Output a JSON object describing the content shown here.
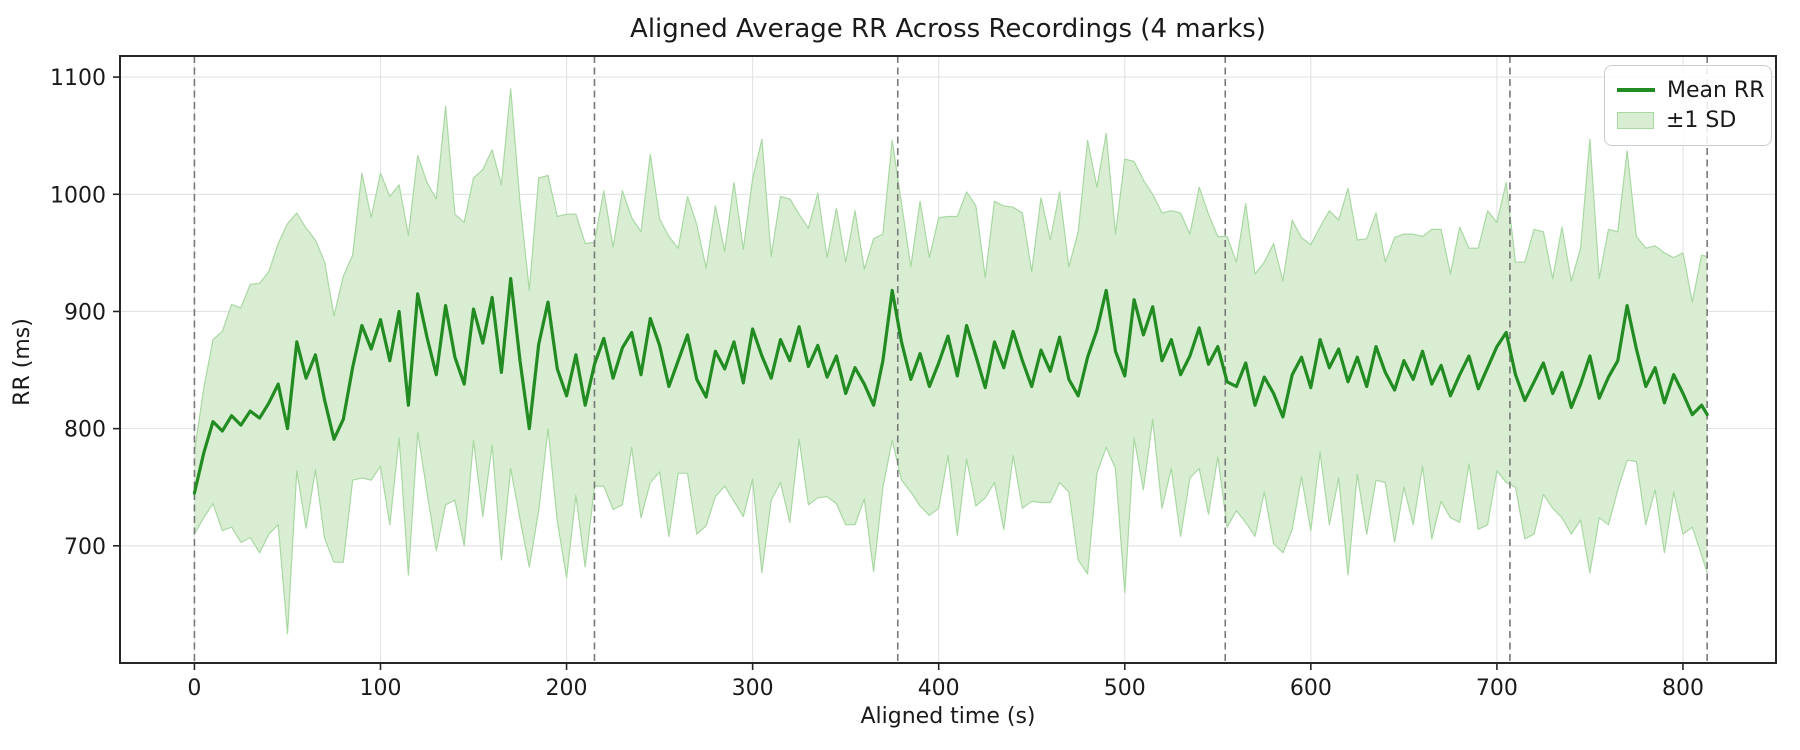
{
  "chart_data": {
    "type": "line",
    "title": "Aligned Average RR Across Recordings (4 marks)",
    "xlabel": "Aligned time (s)",
    "ylabel": "RR (ms)",
    "legend": [
      "Mean RR",
      "±1 SD"
    ],
    "legend_position": "upper right",
    "grid": true,
    "xlim": [
      -40,
      850
    ],
    "ylim": [
      600,
      1118
    ],
    "xticks": [
      0,
      100,
      200,
      300,
      400,
      500,
      600,
      700,
      800
    ],
    "yticks": [
      700,
      800,
      900,
      1000,
      1100
    ],
    "mark_lines_x": [
      0,
      215,
      378,
      554,
      707,
      813
    ],
    "style": {
      "line_color": "#228b22",
      "band_fill": "#d8edd2",
      "band_edge": "#a9d8a3",
      "mark_line_color": "#787878",
      "grid_color": "#e3e3e3",
      "spine_color": "#262626",
      "text_color": "#1a1a1a"
    },
    "x": [
      0,
      5,
      10,
      15,
      20,
      25,
      30,
      35,
      40,
      45,
      50,
      55,
      60,
      65,
      70,
      75,
      80,
      85,
      90,
      95,
      100,
      105,
      110,
      115,
      120,
      125,
      130,
      135,
      140,
      145,
      150,
      155,
      160,
      165,
      170,
      175,
      180,
      185,
      190,
      195,
      200,
      205,
      210,
      215,
      220,
      225,
      230,
      235,
      240,
      245,
      250,
      255,
      260,
      265,
      270,
      275,
      280,
      285,
      290,
      295,
      300,
      305,
      310,
      315,
      320,
      325,
      330,
      335,
      340,
      345,
      350,
      355,
      360,
      365,
      370,
      375,
      380,
      385,
      390,
      395,
      400,
      405,
      410,
      415,
      420,
      425,
      430,
      435,
      440,
      445,
      450,
      455,
      460,
      465,
      470,
      475,
      480,
      485,
      490,
      495,
      500,
      505,
      510,
      515,
      520,
      525,
      530,
      535,
      540,
      545,
      550,
      555,
      560,
      565,
      570,
      575,
      580,
      585,
      590,
      595,
      600,
      605,
      610,
      615,
      620,
      625,
      630,
      635,
      640,
      645,
      650,
      655,
      660,
      665,
      670,
      675,
      680,
      685,
      690,
      695,
      700,
      705,
      710,
      715,
      720,
      725,
      730,
      735,
      740,
      745,
      750,
      755,
      760,
      765,
      770,
      775,
      780,
      785,
      790,
      795,
      800,
      805,
      810,
      813
    ],
    "series": [
      {
        "name": "Mean RR",
        "values": [
          745,
          779,
          806,
          798,
          811,
          803,
          815,
          809,
          822,
          838,
          800,
          874,
          843,
          863,
          824,
          791,
          808,
          852,
          888,
          868,
          893,
          858,
          900,
          820,
          915,
          878,
          846,
          905,
          861,
          838,
          902,
          873,
          912,
          848,
          928,
          858,
          800,
          872,
          908,
          851,
          828,
          863,
          820,
          855,
          877,
          843,
          869,
          882,
          846,
          894,
          871,
          836,
          858,
          880,
          842,
          827,
          866,
          851,
          874,
          839,
          885,
          862,
          843,
          876,
          858,
          887,
          853,
          871,
          844,
          862,
          830,
          852,
          838,
          820,
          858,
          918,
          874,
          842,
          864,
          836,
          856,
          879,
          845,
          888,
          862,
          835,
          874,
          852,
          883,
          858,
          836,
          867,
          849,
          878,
          842,
          828,
          861,
          884,
          918,
          866,
          845,
          910,
          880,
          904,
          858,
          876,
          846,
          862,
          886,
          855,
          870,
          840,
          836,
          856,
          820,
          844,
          830,
          810,
          846,
          861,
          835,
          876,
          852,
          868,
          840,
          861,
          836,
          870,
          848,
          833,
          858,
          842,
          866,
          838,
          854,
          828,
          846,
          862,
          834,
          852,
          870,
          882,
          846,
          824,
          840,
          856,
          830,
          848,
          818,
          838,
          862,
          826,
          844,
          858,
          905,
          868,
          836,
          852,
          822,
          846,
          830,
          812,
          820,
          812
        ]
      },
      {
        "name": "±1 SD",
        "band_halfwidth_sd": [
          35,
          55,
          70,
          85,
          95,
          100,
          108,
          115,
          112,
          120,
          175,
          110,
          128,
          98,
          118,
          105,
          122,
          96,
          130,
          112,
          125,
          140,
          108,
          145,
          118,
          132,
          150,
          170,
          122,
          138,
          112,
          148,
          126,
          160,
          162,
          135,
          118,
          142,
          108,
          130,
          155,
          120,
          138,
          104,
          126,
          112,
          134,
          98,
          122,
          140,
          108,
          128,
          96,
          118,
          132,
          110,
          124,
          100,
          136,
          114,
          128,
          185,
          104,
          122,
          138,
          96,
          118,
          130,
          102,
          126,
          112,
          134,
          98,
          142,
          108,
          128,
          118,
          96,
          130,
          110,
          124,
          102,
          136,
          114,
          128,
          94,
          120,
          138,
          106,
          126,
          98,
          130,
          112,
          124,
          96,
          140,
          185,
          122,
          134,
          100,
          185,
          118,
          132,
          96,
          126,
          110,
          138,
          104,
          120,
          128,
          94,
          124,
          106,
          136,
          112,
          98,
          128,
          116,
          132,
          102,
          122,
          96,
          134,
          110,
          165,
          100,
          126,
          114,
          94,
          130,
          108,
          124,
          98,
          132,
          116,
          104,
          126,
          92,
          120,
          134,
          106,
          128,
          96,
          118,
          130,
          112,
          98,
          124,
          108,
          116,
          185,
          102,
          126,
          110,
          132,
          96,
          118,
          104,
          128,
          100,
          120,
          96,
          128,
          135
        ]
      }
    ]
  }
}
